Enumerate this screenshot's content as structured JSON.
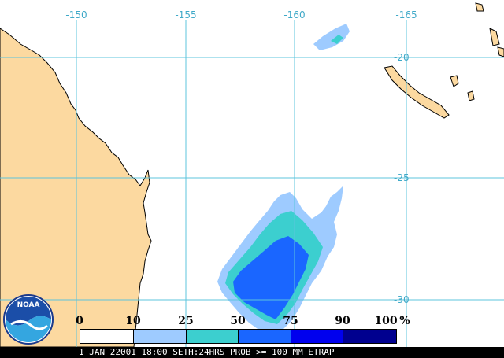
{
  "map": {
    "longitude_labels": [
      "-150",
      "-155",
      "-160",
      "-165"
    ],
    "latitude_labels": [
      "-20",
      "-25",
      "-30"
    ],
    "land_color": "#fcd9a0",
    "coast_color": "#000000",
    "grid_color": "#5cc4dc",
    "islands": [
      "new-caledonia",
      "vanuatu-islands",
      "fiji-islands"
    ]
  },
  "legend": {
    "ticks": [
      "0",
      "10",
      "25",
      "50",
      "75",
      "90",
      "100"
    ],
    "unit": "%",
    "colors": [
      "#ffffff",
      "#9ecbff",
      "#3ccfcf",
      "#1a66ff",
      "#0000ee",
      "#00008f"
    ]
  },
  "status": {
    "text": "1 JAN 22001 18:00 SETH:24HRS PROB >= 100 MM ETRAP"
  },
  "logo": {
    "text": "NOAA",
    "icon": "noaa-logo-icon"
  }
}
